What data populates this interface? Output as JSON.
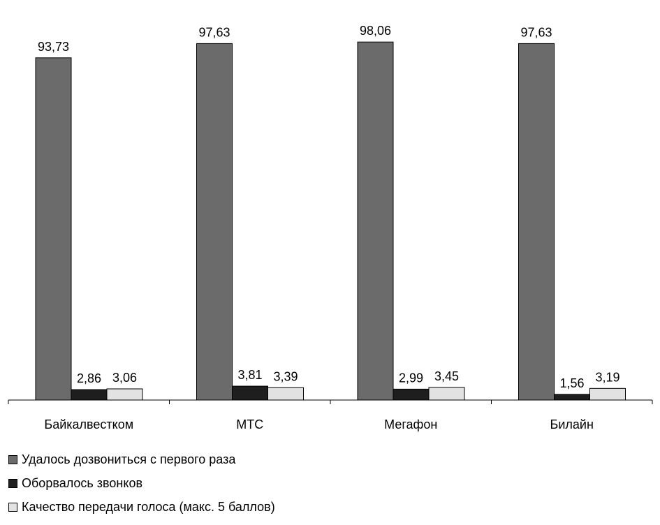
{
  "chart_data": {
    "type": "bar",
    "categories": [
      "Байкалвестком",
      "МТС",
      "Мегафон",
      "Билайн"
    ],
    "series": [
      {
        "name": "Удалось дозвониться с первого раза",
        "values": [
          93.73,
          97.63,
          98.06,
          97.63
        ],
        "labels": [
          "93,73",
          "97,63",
          "98,06",
          "97,63"
        ],
        "color": "#6b6b6b"
      },
      {
        "name": "Оборвалось звонков",
        "values": [
          2.86,
          3.81,
          2.99,
          1.56
        ],
        "labels": [
          "2,86",
          "3,81",
          "2,99",
          "1,56"
        ],
        "color": "#1e1e1e"
      },
      {
        "name": "Качество передачи голоса (макс. 5 баллов)",
        "values": [
          3.06,
          3.39,
          3.45,
          3.19
        ],
        "labels": [
          "3,06",
          "3,39",
          "3,45",
          "3,19"
        ],
        "color": "#e2e2e2"
      }
    ],
    "ylim": [
      0,
      100
    ],
    "grid": false,
    "legend_position": "bottom-left"
  }
}
